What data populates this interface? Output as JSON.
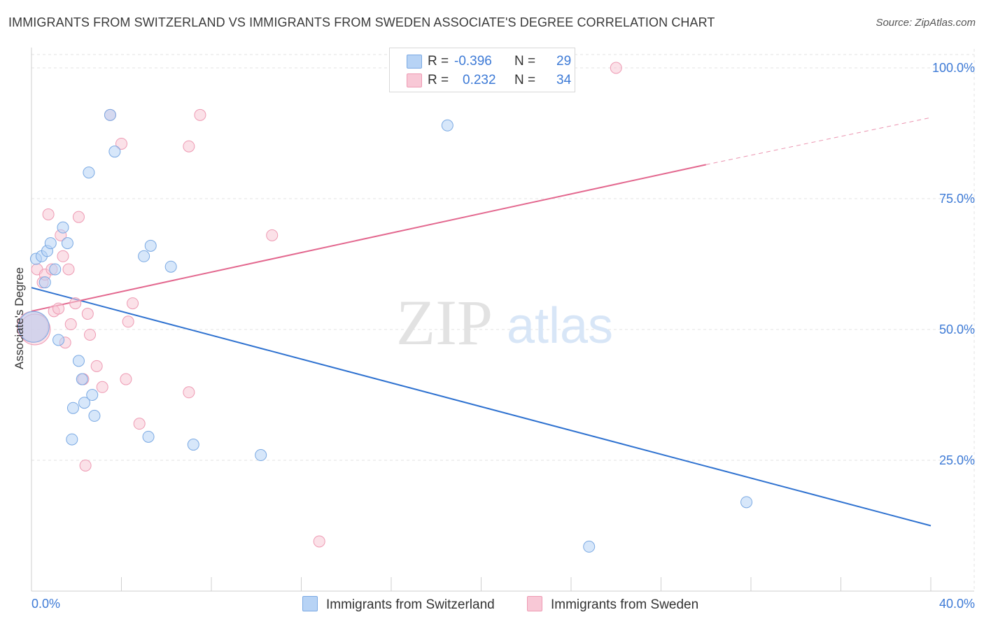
{
  "title": "IMMIGRANTS FROM SWITZERLAND VS IMMIGRANTS FROM SWEDEN ASSOCIATE'S DEGREE CORRELATION CHART",
  "source": "Source: ZipAtlas.com",
  "watermark": {
    "zip": "ZIP",
    "atlas": "atlas"
  },
  "legend_top": {
    "rows": [
      {
        "r_label": "R =",
        "r_value": "-0.396",
        "n_label": "N =",
        "n_value": "29"
      },
      {
        "r_label": "R =",
        "r_value": "0.232",
        "n_label": "N =",
        "n_value": "34"
      }
    ]
  },
  "colors": {
    "blue_fill": "#b7d3f5",
    "blue_stroke": "#7aa9e3",
    "blue_line": "#2f72d0",
    "pink_fill": "#f8c8d6",
    "pink_stroke": "#ee9ab3",
    "pink_line": "#e3688f",
    "axis_text": "#3d7ad6",
    "grid": "#e3e3e3"
  },
  "chart_data": {
    "type": "scatter",
    "title": "IMMIGRANTS FROM SWITZERLAND VS IMMIGRANTS FROM SWEDEN ASSOCIATE'S DEGREE CORRELATION CHART",
    "xlabel": "",
    "ylabel": "Associate's Degree",
    "xlim": [
      0,
      40
    ],
    "ylim": [
      0,
      105
    ],
    "x_tick_labels": [
      "0.0%",
      "40.0%"
    ],
    "y_tick_labels": [
      "25.0%",
      "50.0%",
      "75.0%",
      "100.0%"
    ],
    "y_ticks": [
      25,
      50,
      75,
      100
    ],
    "grid": true,
    "legend_position": "bottom",
    "series": [
      {
        "name": "Immigrants from Switzerland",
        "color": "#b7d3f5",
        "points": [
          [
            0.1,
            50.5
          ],
          [
            0.2,
            63.5
          ],
          [
            0.45,
            64.0
          ],
          [
            0.6,
            59.0
          ],
          [
            0.7,
            65.0
          ],
          [
            0.85,
            66.5
          ],
          [
            1.05,
            61.5
          ],
          [
            1.2,
            48.0
          ],
          [
            1.4,
            69.5
          ],
          [
            1.6,
            66.5
          ],
          [
            1.8,
            29.0
          ],
          [
            1.85,
            35.0
          ],
          [
            2.1,
            44.0
          ],
          [
            2.25,
            40.5
          ],
          [
            2.35,
            36.0
          ],
          [
            2.55,
            80.0
          ],
          [
            2.7,
            37.5
          ],
          [
            2.8,
            33.5
          ],
          [
            3.5,
            91.0
          ],
          [
            3.7,
            84.0
          ],
          [
            5.0,
            64.0
          ],
          [
            5.2,
            29.5
          ],
          [
            5.3,
            66.0
          ],
          [
            6.2,
            62.0
          ],
          [
            7.2,
            28.0
          ],
          [
            10.2,
            26.0
          ],
          [
            18.5,
            89.0
          ],
          [
            24.8,
            8.5
          ],
          [
            31.8,
            17.0
          ]
        ],
        "trend": {
          "x0": 0,
          "y0": 58.0,
          "x1": 40,
          "y1": 12.5
        }
      },
      {
        "name": "Immigrants from Sweden",
        "color": "#f8c8d6",
        "points": [
          [
            0.05,
            50.5
          ],
          [
            0.25,
            61.5
          ],
          [
            0.5,
            59.0
          ],
          [
            0.6,
            60.5
          ],
          [
            0.75,
            72.0
          ],
          [
            0.9,
            61.5
          ],
          [
            1.0,
            53.5
          ],
          [
            1.2,
            54.0
          ],
          [
            1.3,
            68.0
          ],
          [
            1.4,
            64.0
          ],
          [
            1.5,
            47.5
          ],
          [
            1.65,
            61.5
          ],
          [
            1.75,
            51.0
          ],
          [
            1.95,
            55.0
          ],
          [
            2.1,
            71.5
          ],
          [
            2.3,
            40.5
          ],
          [
            2.4,
            24.0
          ],
          [
            2.5,
            53.0
          ],
          [
            2.6,
            49.0
          ],
          [
            2.9,
            43.0
          ],
          [
            3.15,
            39.0
          ],
          [
            3.5,
            91.0
          ],
          [
            4.0,
            85.5
          ],
          [
            4.2,
            40.5
          ],
          [
            4.3,
            51.5
          ],
          [
            4.5,
            55.0
          ],
          [
            4.8,
            32.0
          ],
          [
            7.0,
            85.0
          ],
          [
            7.0,
            38.0
          ],
          [
            7.5,
            91.0
          ],
          [
            10.7,
            68.0
          ],
          [
            12.8,
            9.5
          ],
          [
            26.0,
            100.0
          ],
          [
            0.15,
            50.0
          ]
        ],
        "trend": {
          "x0": 0,
          "y0": 53.5,
          "x1": 30.0,
          "y1": 81.5,
          "dash_to_x": 40,
          "dash_to_y": 90.5
        }
      }
    ]
  },
  "legend_bottom": [
    {
      "label": "Immigrants from Switzerland"
    },
    {
      "label": "Immigrants from Sweden"
    }
  ]
}
